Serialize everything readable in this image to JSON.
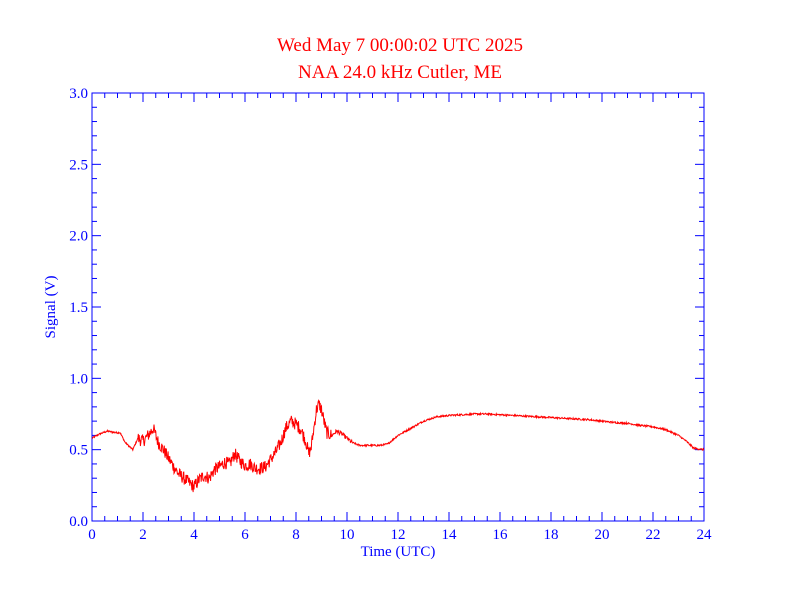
{
  "chart_data": {
    "type": "line",
    "title": "Wed May 7 00:00:02 UTC 2025",
    "subtitle": "NAA 24.0 kHz Cutler, ME",
    "xlabel": "Time (UTC)",
    "ylabel": "Signal (V)",
    "xlim": [
      0,
      24
    ],
    "ylim": [
      0,
      3.0
    ],
    "x_ticks": [
      "0",
      "2",
      "4",
      "6",
      "8",
      "10",
      "12",
      "14",
      "16",
      "18",
      "20",
      "22",
      "24"
    ],
    "y_ticks": [
      "0.0",
      "0.5",
      "1.0",
      "1.5",
      "2.0",
      "2.5",
      "3.0"
    ],
    "grid": false,
    "colors": {
      "axes": "#0000ff",
      "title": "#ff0000",
      "series": "#ff0000"
    },
    "series": [
      {
        "x": [
          0,
          0.3,
          0.6,
          0.9,
          1.1,
          1.3,
          1.6,
          1.8,
          2.0,
          2.2,
          2.4,
          2.6,
          2.8,
          3.0,
          3.2,
          3.4,
          3.6,
          3.8,
          4.0,
          4.2,
          4.4,
          4.6,
          4.8,
          5.0,
          5.2,
          5.4,
          5.6,
          5.8,
          6.0,
          6.2,
          6.4,
          6.6,
          6.8,
          7.0,
          7.2,
          7.4,
          7.6,
          7.8,
          8.0,
          8.2,
          8.4,
          8.5,
          8.6,
          8.8,
          8.9,
          9.0,
          9.2,
          9.4,
          9.6,
          9.8,
          10.0,
          10.2,
          10.5,
          10.8,
          11.0,
          11.3,
          11.6,
          11.8,
          12.0,
          12.3,
          12.6,
          13.0,
          13.5,
          14.0,
          14.5,
          15.0,
          15.5,
          16.0,
          16.5,
          17.0,
          17.5,
          18.0,
          18.5,
          19.0,
          19.5,
          20.0,
          20.5,
          21.0,
          21.5,
          22.0,
          22.5,
          23.0,
          23.3,
          23.6,
          24.0
        ],
        "y": [
          0.58,
          0.61,
          0.63,
          0.62,
          0.62,
          0.55,
          0.5,
          0.58,
          0.56,
          0.6,
          0.65,
          0.55,
          0.5,
          0.44,
          0.38,
          0.33,
          0.3,
          0.27,
          0.24,
          0.29,
          0.32,
          0.3,
          0.36,
          0.38,
          0.41,
          0.4,
          0.47,
          0.42,
          0.39,
          0.4,
          0.37,
          0.37,
          0.38,
          0.43,
          0.48,
          0.55,
          0.65,
          0.7,
          0.68,
          0.64,
          0.55,
          0.47,
          0.52,
          0.78,
          0.82,
          0.78,
          0.62,
          0.6,
          0.63,
          0.61,
          0.58,
          0.55,
          0.53,
          0.53,
          0.53,
          0.53,
          0.54,
          0.57,
          0.6,
          0.63,
          0.66,
          0.7,
          0.73,
          0.74,
          0.745,
          0.75,
          0.75,
          0.745,
          0.74,
          0.735,
          0.73,
          0.725,
          0.72,
          0.715,
          0.71,
          0.7,
          0.69,
          0.685,
          0.67,
          0.66,
          0.64,
          0.6,
          0.56,
          0.51,
          0.5
        ]
      }
    ]
  }
}
